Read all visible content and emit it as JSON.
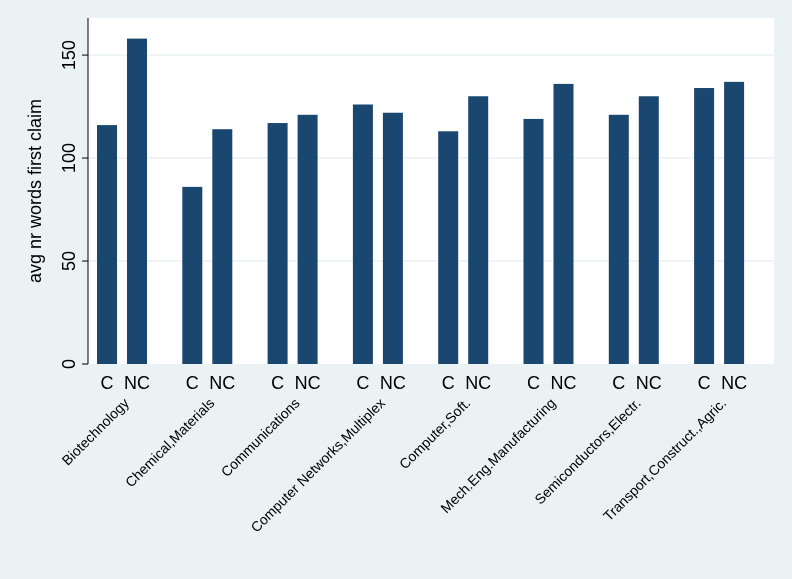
{
  "chart_data": {
    "type": "bar",
    "ylabel": "avg nr words first claim",
    "ylim": [
      0,
      168
    ],
    "yticks": [
      0,
      50,
      100,
      150
    ],
    "grid": true,
    "bar_color": "#1a476f",
    "background_color": "#eaf2f3",
    "plot_background_color": "#ffffff",
    "gridline_color": "#eaf2f3",
    "bar_labels": [
      "C",
      "NC"
    ],
    "categories": [
      "Biotechnology",
      "Chemical,Materials",
      "Communications",
      "Computer Networks,Multiplex",
      "Computer,Soft.",
      "Mech.Eng.Manufacturing",
      "Semiconductors,Electr.",
      "Transport,Construct.,Agric."
    ],
    "series": [
      {
        "values": [
          116,
          86,
          117,
          126,
          113,
          119,
          121,
          134
        ]
      },
      {
        "values": [
          158,
          114,
          121,
          122,
          130,
          136,
          130,
          137
        ]
      }
    ]
  }
}
